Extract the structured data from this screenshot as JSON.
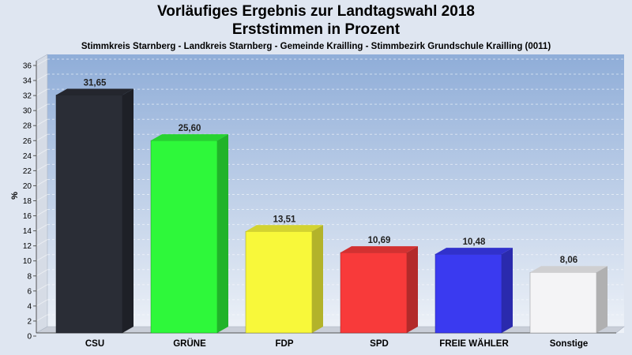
{
  "chart_data": {
    "type": "bar",
    "title": "Vorläufiges Ergebnis zur Landtagswahl 2018",
    "subtitle_line": "Erststimmen in Prozent",
    "subtitle": "Stimmkreis Starnberg - Landkreis Starnberg - Gemeinde Krailling - Stimmbezirk Grundschule Krailling (0011)",
    "xlabel": "",
    "ylabel": "%",
    "ylim": [
      0,
      36
    ],
    "yticks": [
      0,
      2,
      4,
      6,
      8,
      10,
      12,
      14,
      16,
      18,
      20,
      22,
      24,
      26,
      28,
      30,
      32,
      34,
      36
    ],
    "grid": true,
    "categories": [
      "CSU",
      "GRÜNE",
      "FDP",
      "SPD",
      "FREIE WÄHLER",
      "Sonstige"
    ],
    "values": [
      31.65,
      25.6,
      13.51,
      10.69,
      10.48,
      8.06
    ],
    "value_labels": [
      "31,65",
      "25,60",
      "13,51",
      "10,69",
      "10,48",
      "8,06"
    ],
    "colors": [
      "#2a2d36",
      "#2ef83a",
      "#f8f83a",
      "#f83a3a",
      "#3a3af0",
      "#f4f4f6"
    ]
  }
}
